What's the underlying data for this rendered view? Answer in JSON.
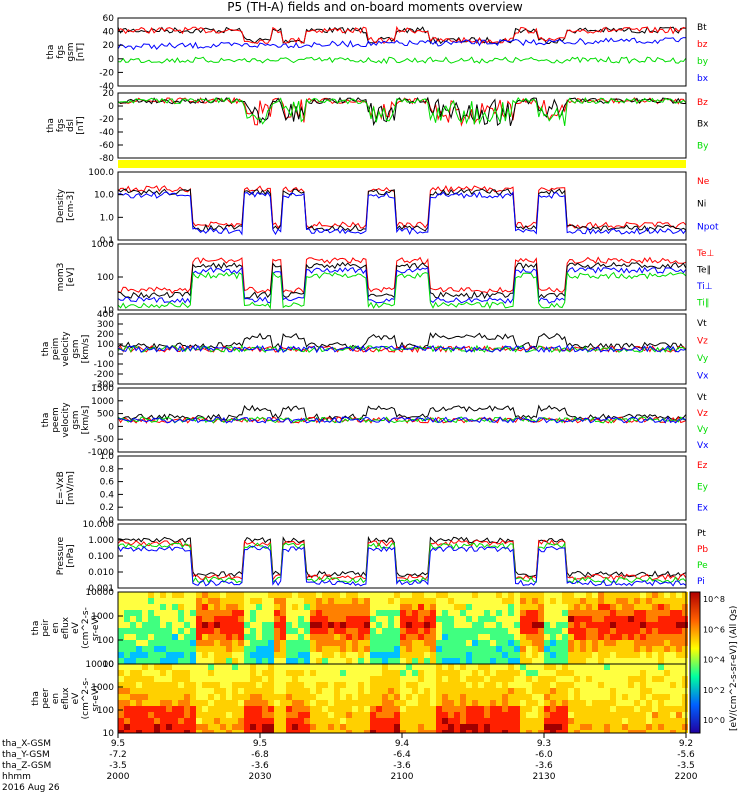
{
  "title": "P5 (TH-A) fields and on-board moments overview",
  "colors": {
    "black": "#000000",
    "red": "#ff0000",
    "green": "#00dd00",
    "blue": "#0000ff",
    "yellow": "#ffff00"
  },
  "chart_data": [
    {
      "type": "line",
      "ylabel": [
        "tha",
        "fgs",
        "gsm",
        "[nT]"
      ],
      "ticks": [
        "60",
        "40",
        "20",
        "0",
        "-20",
        "-40"
      ],
      "ylim": [
        -40,
        60
      ],
      "series": [
        {
          "name": "Bt",
          "color": "black"
        },
        {
          "name": "bz",
          "color": "red"
        },
        {
          "name": "by",
          "color": "green"
        },
        {
          "name": "bx",
          "color": "blue"
        }
      ]
    },
    {
      "type": "line",
      "ylabel": [
        "tha",
        "fgs",
        "dsl",
        "[nT]"
      ],
      "ticks": [
        "20",
        "0",
        "-20",
        "-40",
        "-60",
        "-80"
      ],
      "ylim": [
        -90,
        20
      ],
      "series": [
        {
          "name": "Bz",
          "color": "red"
        },
        {
          "name": "Bx",
          "color": "black"
        },
        {
          "name": "By",
          "color": "green"
        }
      ]
    },
    {
      "type": "bar",
      "ylabel": [],
      "ticks": [],
      "series": [
        {
          "name": "",
          "color": "yellow"
        }
      ]
    },
    {
      "type": "line",
      "ylabel": [
        "Density",
        "[cm-3]"
      ],
      "ticks": [
        "100.0",
        "10.0",
        "1.0",
        "0.1"
      ],
      "log": true,
      "series": [
        {
          "name": "Ne",
          "color": "red"
        },
        {
          "name": "Ni",
          "color": "black"
        },
        {
          "name": "Npot",
          "color": "blue"
        }
      ]
    },
    {
      "type": "line",
      "ylabel": [
        "mom3",
        "[eV]"
      ],
      "ticks": [
        "1000",
        "100",
        "10"
      ],
      "log": true,
      "series": [
        {
          "name": "Te⊥",
          "color": "red"
        },
        {
          "name": "Te∥",
          "color": "black"
        },
        {
          "name": "Ti⊥",
          "color": "blue"
        },
        {
          "name": "Ti∥",
          "color": "green"
        }
      ]
    },
    {
      "type": "line",
      "ylabel": [
        "tha",
        "peim",
        "velocity",
        "gsm",
        "[km/s]"
      ],
      "ticks": [
        "400",
        "300",
        "200",
        "100",
        "0",
        "-100",
        "-200",
        "-300"
      ],
      "ylim": [
        -300,
        400
      ],
      "series": [
        {
          "name": "Vt",
          "color": "black"
        },
        {
          "name": "Vz",
          "color": "red"
        },
        {
          "name": "Vy",
          "color": "green"
        },
        {
          "name": "Vx",
          "color": "blue"
        }
      ]
    },
    {
      "type": "line",
      "ylabel": [
        "tha",
        "peem",
        "velocity",
        "gsm",
        "[km/s]"
      ],
      "ticks": [
        "1500",
        "1000",
        "500",
        "0",
        "-500",
        "-1000"
      ],
      "ylim": [
        -1000,
        1500
      ],
      "series": [
        {
          "name": "Vt",
          "color": "black"
        },
        {
          "name": "Vz",
          "color": "red"
        },
        {
          "name": "Vy",
          "color": "green"
        },
        {
          "name": "Vx",
          "color": "blue"
        }
      ]
    },
    {
      "type": "line",
      "ylabel": [
        "E=-VxB",
        "[mV/m]"
      ],
      "ticks": [
        "1.0",
        "0.8",
        "0.6",
        "0.4",
        "0.2",
        "0.0"
      ],
      "ylim": [
        0,
        1
      ],
      "series": [
        {
          "name": "Ez",
          "color": "red"
        },
        {
          "name": "Ey",
          "color": "green"
        },
        {
          "name": "Ex",
          "color": "blue"
        }
      ]
    },
    {
      "type": "line",
      "ylabel": [
        "Pressure",
        "[nPa]"
      ],
      "ticks": [
        "10.000",
        "1.000",
        "0.100",
        "0.010",
        "0.001"
      ],
      "log": true,
      "series": [
        {
          "name": "Pt",
          "color": "black"
        },
        {
          "name": "Pb",
          "color": "red"
        },
        {
          "name": "Pe",
          "color": "green"
        },
        {
          "name": "Pi",
          "color": "blue"
        }
      ]
    },
    {
      "type": "heatmap",
      "ylabel": [
        "tha",
        "peir",
        "en",
        "eflux",
        "eV",
        "(cm^2-s-",
        "sr-eV)"
      ],
      "ticks": [
        "10000",
        "1000",
        "100",
        "10"
      ],
      "log": true
    },
    {
      "type": "heatmap",
      "ylabel": [
        "tha",
        "peer",
        "en",
        "eflux",
        "eV",
        "(cm^2-s-",
        "sr-eV)"
      ],
      "ticks": [
        "10000",
        "1000",
        "100",
        "10"
      ],
      "log": true
    }
  ],
  "colorbar": {
    "label": "[eV/(cm^2-s-sr-eV)] (All Qs)",
    "ticks": [
      "10^8",
      "10^6",
      "10^4",
      "10^2",
      "10^0"
    ]
  },
  "xaxis": {
    "rows": [
      {
        "label": "tha_X-GSM",
        "values": [
          "9.5",
          "9.5",
          "9.4",
          "9.3",
          "9.2"
        ]
      },
      {
        "label": "tha_Y-GSM",
        "values": [
          "-7.2",
          "-6.8",
          "-6.4",
          "-6.0",
          "-5.6"
        ]
      },
      {
        "label": "tha_Z-GSM",
        "values": [
          "-3.5",
          "-3.6",
          "-3.6",
          "-3.6",
          "-3.5"
        ]
      },
      {
        "label": "hhmm",
        "values": [
          "2000",
          "2030",
          "2100",
          "2130",
          "2200"
        ]
      }
    ],
    "date": "2016 Aug 26"
  }
}
